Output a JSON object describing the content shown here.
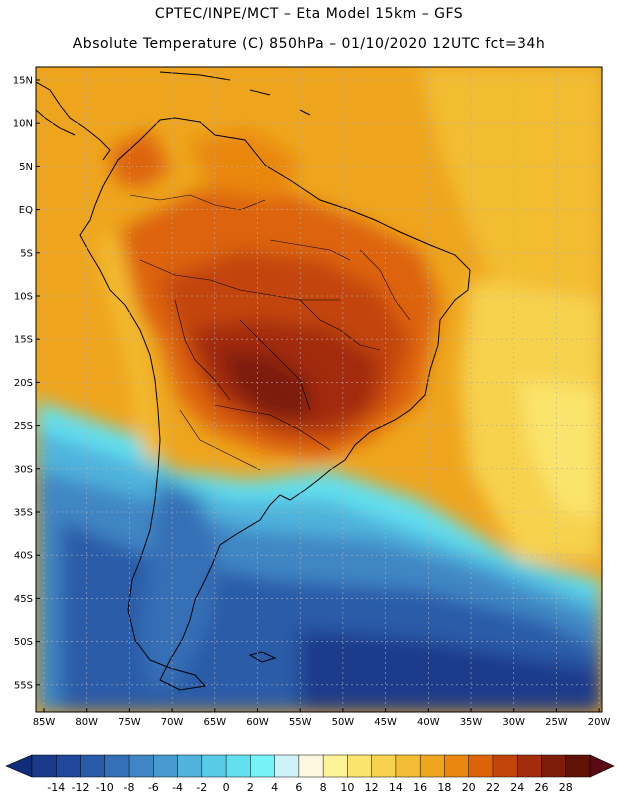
{
  "header": {
    "line1": "CPTEC/INPE/MCT –  Eta Model 15km – GFS",
    "line2": "Absolute Temperature (C) 850hPa – 01/10/2020 12UTC fct=34h"
  },
  "map": {
    "lat_ticks": [
      "15N",
      "10N",
      "5N",
      "EQ",
      "5S",
      "10S",
      "15S",
      "20S",
      "25S",
      "30S",
      "35S",
      "40S",
      "45S",
      "50S",
      "55S"
    ],
    "lon_ticks": [
      "85W",
      "80W",
      "75W",
      "70W",
      "65W",
      "60W",
      "55W",
      "50W",
      "45W",
      "40W",
      "35W",
      "30W",
      "25W",
      "20W"
    ],
    "grid": true
  },
  "colorbar": {
    "labels": [
      "-14",
      "-12",
      "-10",
      "-8",
      "-6",
      "-4",
      "-2",
      "0",
      "2",
      "4",
      "6",
      "8",
      "10",
      "12",
      "14",
      "16",
      "18",
      "20",
      "22",
      "24",
      "26",
      "28"
    ],
    "colors": [
      "#1b3a8a",
      "#21479a",
      "#2a5ba8",
      "#3570b6",
      "#3f86c4",
      "#479bcf",
      "#4fb3dc",
      "#58cbe6",
      "#62e0ef",
      "#74f4f7",
      "#cdf2f8",
      "#fdf7e0",
      "#fdf49a",
      "#fbe46c",
      "#f7d24e",
      "#f3bd33",
      "#eea51d",
      "#e9870f",
      "#dd6308",
      "#c34409",
      "#a22c0b",
      "#7d1d0a",
      "#611308"
    ],
    "under_color": "#0f2d78",
    "over_color": "#5a0a14"
  }
}
